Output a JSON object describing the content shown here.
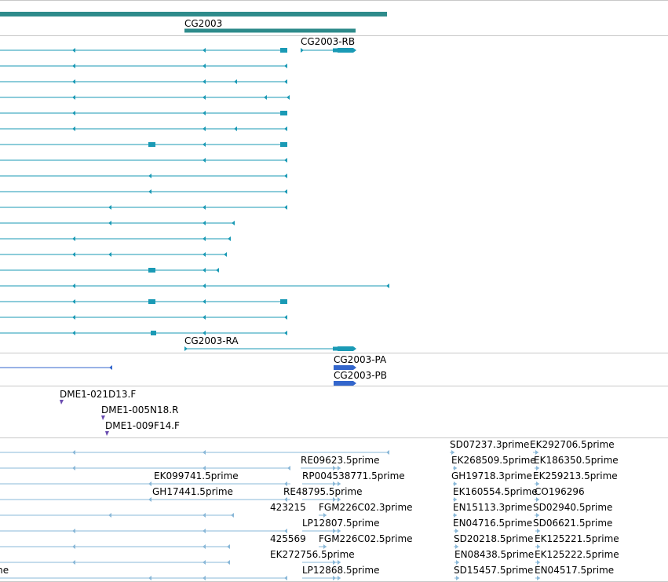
{
  "tracks": {
    "gene": {
      "name": "CG2003",
      "color": "#2e8b8b"
    },
    "transcripts": {
      "color": "#1a9ab5",
      "labels": [
        "CG2003-RB",
        "CG2003-RA"
      ]
    },
    "proteins": {
      "color": "#3366cc",
      "labels": [
        "CG2003-PA",
        "CG2003-PB"
      ]
    },
    "clones": {
      "color": "#6a4cb0",
      "labels": [
        "DME1-021D13.F",
        "DME1-005N18.R",
        "DME1-009F14.F"
      ]
    },
    "ests": {
      "color": "#8ab8d8",
      "labels": [
        "SD07237.3prime",
        "EK292706.5prime",
        "RE09623.5prime",
        "EK268509.5prime",
        "EK186350.5prime",
        "EK099741.5prime",
        "RP004538771.5prime",
        "GH19718.3prime",
        "EK259213.5prime",
        "GH17441.5prime",
        "RE48795.5prime",
        "EK160554.5prime",
        "CO196296",
        "423215",
        "FGM226C02.3prime",
        "EN15113.3prime",
        "SD02940.5prime",
        "LP12807.5prime",
        "EN04716.5prime",
        "SD06621.5prime",
        "425569",
        "FGM226C02.5prime",
        "SD20218.5prime",
        "EK125221.5prime",
        "EK272756.5prime",
        "EN08438.5prime",
        "EK125222.5prime",
        "me",
        "LP12868.5prime",
        "SD15457.5prime",
        "EN04517.5prime"
      ]
    }
  }
}
